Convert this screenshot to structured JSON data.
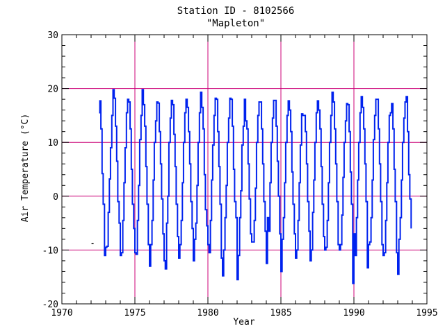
{
  "chart_data": {
    "type": "line",
    "title": "Station ID - 8102566",
    "subtitle": "\"Mapleton\"",
    "xlabel": "Year",
    "ylabel": "Air Temperature (°C)",
    "xlim": [
      1970,
      1995
    ],
    "ylim": [
      -20,
      30
    ],
    "x_ticks": [
      "1970",
      "1975",
      "1980",
      "1985",
      "1990",
      "1995"
    ],
    "y_ticks": [
      "-20",
      "-10",
      "0",
      "10",
      "20",
      "30"
    ],
    "grid": true,
    "grid_lines": {
      "x": [
        1975,
        1980,
        1985,
        1990
      ],
      "y": [
        -10,
        0,
        10,
        20
      ]
    },
    "grid_color": "#cc0077",
    "series_color": "#0022ee",
    "isolated_points": [
      [
        1972.1,
        -8.8
      ]
    ],
    "series": [
      {
        "points": [
          [
            1972.55,
            15.5
          ],
          [
            1972.6,
            17.7
          ],
          [
            1972.67,
            12.5
          ],
          [
            1972.75,
            4.2
          ],
          [
            1972.83,
            -1.5
          ],
          [
            1972.92,
            -11.0
          ],
          [
            1973.0,
            -9.5
          ],
          [
            1973.08,
            -9.3
          ],
          [
            1973.17,
            -3.0
          ],
          [
            1973.25,
            3.2
          ],
          [
            1973.33,
            9.0
          ],
          [
            1973.42,
            15.0
          ],
          [
            1973.5,
            19.8
          ],
          [
            1973.58,
            18.2
          ],
          [
            1973.67,
            13.0
          ],
          [
            1973.75,
            6.5
          ],
          [
            1973.83,
            -1.0
          ],
          [
            1973.92,
            -5.0
          ],
          [
            1974.0,
            -11.0
          ],
          [
            1974.08,
            -10.5
          ],
          [
            1974.17,
            -4.5
          ],
          [
            1974.25,
            2.5
          ],
          [
            1974.33,
            9.0
          ],
          [
            1974.42,
            15.5
          ],
          [
            1974.5,
            18.0
          ],
          [
            1974.58,
            17.5
          ],
          [
            1974.67,
            12.5
          ],
          [
            1974.75,
            5.0
          ],
          [
            1974.83,
            -1.5
          ],
          [
            1974.92,
            -6.0
          ],
          [
            1975.0,
            -10.5
          ],
          [
            1975.08,
            -10.8
          ],
          [
            1975.17,
            -4.5
          ],
          [
            1975.25,
            2.0
          ],
          [
            1975.33,
            10.5
          ],
          [
            1975.42,
            15.0
          ],
          [
            1975.5,
            19.8
          ],
          [
            1975.58,
            17.0
          ],
          [
            1975.67,
            13.0
          ],
          [
            1975.75,
            5.5
          ],
          [
            1975.83,
            -1.5
          ],
          [
            1975.92,
            -9.0
          ],
          [
            1976.0,
            -13.0
          ],
          [
            1976.08,
            -9.0
          ],
          [
            1976.17,
            -4.5
          ],
          [
            1976.25,
            3.0
          ],
          [
            1976.33,
            10.0
          ],
          [
            1976.42,
            14.0
          ],
          [
            1976.5,
            17.5
          ],
          [
            1976.58,
            17.3
          ],
          [
            1976.67,
            12.0
          ],
          [
            1976.75,
            6.0
          ],
          [
            1976.83,
            -0.5
          ],
          [
            1976.92,
            -7.0
          ],
          [
            1977.0,
            -12.0
          ],
          [
            1977.08,
            -13.5
          ],
          [
            1977.17,
            -5.0
          ],
          [
            1977.25,
            0.0
          ],
          [
            1977.33,
            10.0
          ],
          [
            1977.42,
            14.5
          ],
          [
            1977.5,
            17.8
          ],
          [
            1977.58,
            17.0
          ],
          [
            1977.67,
            11.5
          ],
          [
            1977.75,
            5.5
          ],
          [
            1977.83,
            -1.5
          ],
          [
            1977.92,
            -7.5
          ],
          [
            1978.0,
            -11.5
          ],
          [
            1978.08,
            -9.0
          ],
          [
            1978.17,
            -4.5
          ],
          [
            1978.25,
            2.5
          ],
          [
            1978.33,
            10.0
          ],
          [
            1978.42,
            15.5
          ],
          [
            1978.5,
            18.0
          ],
          [
            1978.58,
            16.5
          ],
          [
            1978.67,
            12.0
          ],
          [
            1978.75,
            6.0
          ],
          [
            1978.83,
            -1.0
          ],
          [
            1978.92,
            -6.0
          ],
          [
            1979.0,
            -12.0
          ],
          [
            1979.08,
            -8.0
          ],
          [
            1979.17,
            -5.0
          ],
          [
            1979.25,
            2.0
          ],
          [
            1979.33,
            10.0
          ],
          [
            1979.42,
            15.5
          ],
          [
            1979.5,
            19.3
          ],
          [
            1979.58,
            16.5
          ],
          [
            1979.67,
            12.5
          ],
          [
            1979.75,
            4.0
          ],
          [
            1979.83,
            -2.5
          ],
          [
            1979.92,
            -5.5
          ],
          [
            1980.0,
            -9.0
          ],
          [
            1980.08,
            -10.5
          ],
          [
            1980.17,
            -4.5
          ],
          [
            1980.25,
            3.0
          ],
          [
            1980.33,
            9.5
          ],
          [
            1980.42,
            15.0
          ],
          [
            1980.5,
            18.2
          ],
          [
            1980.58,
            18.0
          ],
          [
            1980.67,
            12.0
          ],
          [
            1980.75,
            5.5
          ],
          [
            1980.83,
            -1.5
          ],
          [
            1980.92,
            -11.5
          ],
          [
            1981.0,
            -14.8
          ],
          [
            1981.08,
            -10.0
          ],
          [
            1981.17,
            -4.0
          ],
          [
            1981.25,
            2.0
          ],
          [
            1981.33,
            10.0
          ],
          [
            1981.42,
            14.5
          ],
          [
            1981.5,
            18.2
          ],
          [
            1981.58,
            18.0
          ],
          [
            1981.67,
            13.0
          ],
          [
            1981.75,
            5.0
          ],
          [
            1981.83,
            -1.0
          ],
          [
            1981.92,
            -4.0
          ],
          [
            1982.0,
            -15.5
          ],
          [
            1982.08,
            -11.0
          ],
          [
            1982.17,
            -4.0
          ],
          [
            1982.25,
            1.0
          ],
          [
            1982.33,
            9.5
          ],
          [
            1982.42,
            13.0
          ],
          [
            1982.5,
            18.0
          ],
          [
            1982.58,
            14.0
          ],
          [
            1982.67,
            12.5
          ],
          [
            1982.75,
            6.0
          ],
          [
            1982.83,
            -0.5
          ],
          [
            1982.92,
            -7.0
          ],
          [
            1983.0,
            -8.5
          ],
          [
            1983.08,
            -8.5
          ],
          [
            1983.17,
            -4.5
          ],
          [
            1983.25,
            1.5
          ],
          [
            1983.33,
            10.0
          ],
          [
            1983.42,
            15.0
          ],
          [
            1983.5,
            17.5
          ],
          [
            1983.58,
            17.5
          ],
          [
            1983.67,
            12.5
          ],
          [
            1983.75,
            6.0
          ],
          [
            1983.83,
            -1.0
          ],
          [
            1983.92,
            -6.5
          ],
          [
            1984.0,
            -12.5
          ],
          [
            1984.08,
            -4.0
          ],
          [
            1984.17,
            -6.5
          ],
          [
            1984.25,
            2.5
          ],
          [
            1984.33,
            10.0
          ],
          [
            1984.42,
            14.5
          ],
          [
            1984.5,
            17.8
          ],
          [
            1984.58,
            17.8
          ],
          [
            1984.67,
            13.0
          ],
          [
            1984.75,
            6.5
          ],
          [
            1984.83,
            0.0
          ],
          [
            1984.92,
            -7.0
          ],
          [
            1985.0,
            -14.0
          ],
          [
            1985.08,
            -8.0
          ],
          [
            1985.17,
            -4.0
          ],
          [
            1985.25,
            2.5
          ],
          [
            1985.33,
            10.0
          ],
          [
            1985.42,
            15.0
          ],
          [
            1985.5,
            17.7
          ],
          [
            1985.58,
            16.0
          ],
          [
            1985.67,
            12.0
          ],
          [
            1985.75,
            4.5
          ],
          [
            1985.83,
            -1.5
          ],
          [
            1985.92,
            -7.0
          ],
          [
            1986.0,
            -11.5
          ],
          [
            1986.08,
            -10.0
          ],
          [
            1986.17,
            -4.5
          ],
          [
            1986.25,
            2.5
          ],
          [
            1986.33,
            9.5
          ],
          [
            1986.42,
            15.3
          ],
          [
            1986.5,
            15.0
          ],
          [
            1986.58,
            15.0
          ],
          [
            1986.67,
            12.0
          ],
          [
            1986.75,
            6.0
          ],
          [
            1986.83,
            -1.0
          ],
          [
            1986.92,
            -6.5
          ],
          [
            1987.0,
            -12.0
          ],
          [
            1987.08,
            -10.0
          ],
          [
            1987.17,
            -3.0
          ],
          [
            1987.25,
            3.0
          ],
          [
            1987.33,
            10.0
          ],
          [
            1987.42,
            15.5
          ],
          [
            1987.5,
            17.7
          ],
          [
            1987.58,
            16.0
          ],
          [
            1987.67,
            12.5
          ],
          [
            1987.75,
            5.5
          ],
          [
            1987.83,
            -1.5
          ],
          [
            1987.92,
            -7.5
          ],
          [
            1988.0,
            -10.0
          ],
          [
            1988.08,
            -9.5
          ],
          [
            1988.17,
            -4.5
          ],
          [
            1988.25,
            2.5
          ],
          [
            1988.33,
            10.0
          ],
          [
            1988.42,
            15.0
          ],
          [
            1988.5,
            19.3
          ],
          [
            1988.58,
            17.5
          ],
          [
            1988.67,
            12.5
          ],
          [
            1988.75,
            6.0
          ],
          [
            1988.83,
            -1.0
          ],
          [
            1988.92,
            -9.0
          ],
          [
            1989.0,
            -10.0
          ],
          [
            1989.08,
            -9.0
          ],
          [
            1989.17,
            -3.5
          ],
          [
            1989.25,
            3.5
          ],
          [
            1989.33,
            10.0
          ],
          [
            1989.42,
            14.0
          ],
          [
            1989.5,
            17.2
          ],
          [
            1989.58,
            17.0
          ],
          [
            1989.67,
            12.0
          ],
          [
            1989.75,
            4.5
          ],
          [
            1989.83,
            -1.5
          ],
          [
            1989.92,
            -16.2
          ],
          [
            1990.0,
            -7.0
          ],
          [
            1990.08,
            -11.0
          ],
          [
            1990.17,
            -4.0
          ],
          [
            1990.25,
            3.0
          ],
          [
            1990.33,
            10.0
          ],
          [
            1990.42,
            15.5
          ],
          [
            1990.5,
            18.5
          ],
          [
            1990.58,
            16.5
          ],
          [
            1990.67,
            12.5
          ],
          [
            1990.75,
            6.0
          ],
          [
            1990.83,
            -1.0
          ],
          [
            1990.92,
            -13.3
          ],
          [
            1991.0,
            -9.0
          ],
          [
            1991.08,
            -8.5
          ],
          [
            1991.17,
            -4.0
          ],
          [
            1991.25,
            3.0
          ],
          [
            1991.33,
            10.5
          ],
          [
            1991.42,
            15.0
          ],
          [
            1991.5,
            18.0
          ],
          [
            1991.58,
            18.0
          ],
          [
            1991.67,
            12.5
          ],
          [
            1991.75,
            6.0
          ],
          [
            1991.83,
            -1.0
          ],
          [
            1991.92,
            -9.0
          ],
          [
            1992.0,
            -11.0
          ],
          [
            1992.08,
            -10.5
          ],
          [
            1992.17,
            -4.5
          ],
          [
            1992.25,
            2.5
          ],
          [
            1992.33,
            10.0
          ],
          [
            1992.42,
            15.0
          ],
          [
            1992.5,
            15.5
          ],
          [
            1992.58,
            17.2
          ],
          [
            1992.67,
            12.5
          ],
          [
            1992.75,
            5.0
          ],
          [
            1992.83,
            -1.0
          ],
          [
            1992.92,
            -10.5
          ],
          [
            1993.0,
            -14.5
          ],
          [
            1993.08,
            -8.0
          ],
          [
            1993.17,
            -4.0
          ],
          [
            1993.25,
            3.0
          ],
          [
            1993.33,
            10.0
          ],
          [
            1993.42,
            14.5
          ],
          [
            1993.5,
            17.5
          ],
          [
            1993.58,
            18.5
          ],
          [
            1993.67,
            12.0
          ],
          [
            1993.75,
            4.0
          ],
          [
            1993.83,
            -0.5
          ],
          [
            1993.92,
            -6.0
          ]
        ]
      }
    ]
  }
}
